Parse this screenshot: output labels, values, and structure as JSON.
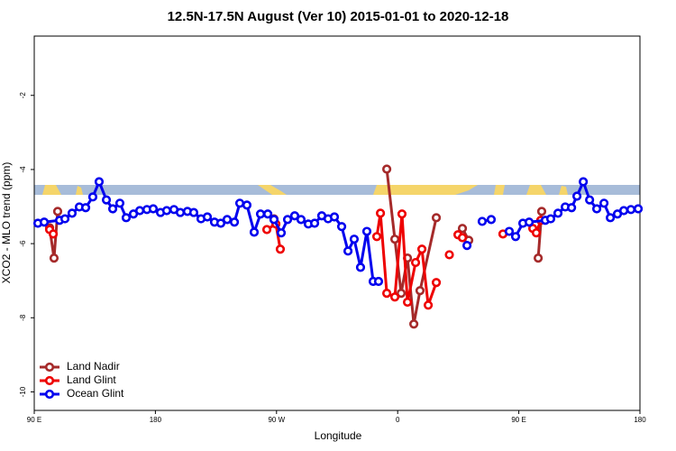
{
  "chart_data": {
    "type": "line",
    "title": "12.5N-17.5N August (Ver 10)   2015-01-01 to 2020-12-18",
    "x_label": "Longitude",
    "y_label": "XCO2 - MLO trend (ppm)",
    "xlim": [
      90,
      540
    ],
    "xticks": [
      {
        "value": 90,
        "label": "90 E"
      },
      {
        "value": 180,
        "label": "180"
      },
      {
        "value": 270,
        "label": "90 W"
      },
      {
        "value": 360,
        "label": "0"
      },
      {
        "value": 450,
        "label": "90 E"
      },
      {
        "value": 540,
        "label": "180"
      }
    ],
    "ylim": [
      -10.5,
      -0.4
    ],
    "yticks": [
      -2,
      -4,
      -6,
      -8,
      -10
    ],
    "legend": "bottom-left",
    "series": [
      {
        "name": "Land Nadir",
        "color": "#a52a2a",
        "x": [
          101.4,
          104.7,
          107.4,
          null,
          268.1,
          null,
          351.9,
          357.9,
          362.6,
          367.3,
          372.0,
          376.6,
          388.7,
          null,
          408.1,
          412.8,
          null,
          464.4,
          467.0
        ],
        "values": [
          -5.57,
          -6.39,
          -5.13,
          null,
          -5.33,
          null,
          -3.99,
          -5.88,
          -7.34,
          -6.39,
          -8.17,
          -7.27,
          -5.3,
          null,
          -5.59,
          -5.91,
          null,
          -6.39,
          -5.13
        ]
      },
      {
        "name": "Land Glint",
        "color": "#ee0000",
        "x": [
          101.4,
          104.1,
          null,
          262.8,
          269.5,
          272.8,
          null,
          344.5,
          347.2,
          351.9,
          357.9,
          363.2,
          367.3,
          373.3,
          378.0,
          382.7,
          388.7,
          null,
          398.4,
          null,
          404.8,
          408.1,
          null,
          438.2,
          null,
          460.4,
          463.0,
          466.3
        ],
        "values": [
          -5.62,
          -5.74,
          null,
          -5.62,
          -5.47,
          -6.15,
          null,
          -5.81,
          -5.18,
          -7.34,
          -7.44,
          -5.2,
          -7.58,
          -6.51,
          -6.15,
          -7.66,
          -7.05,
          null,
          -6.3,
          null,
          -5.76,
          -5.84,
          null,
          -5.74,
          null,
          -5.59,
          -5.71,
          -5.37
        ]
      },
      {
        "name": "Ocean Glint",
        "color": "#0000ee",
        "x": [
          92.7,
          97.4,
          108.8,
          112.8,
          118.1,
          123.5,
          128.2,
          133.5,
          138.2,
          143.6,
          148.3,
          153.6,
          158.3,
          163.7,
          168.4,
          173.7,
          178.4,
          183.8,
          188.4,
          193.8,
          198.5,
          203.8,
          208.5,
          213.9,
          218.6,
          223.9,
          228.6,
          233.3,
          238.7,
          242.7,
          248.0,
          253.4,
          258.1,
          263.5,
          268.1,
          273.5,
          278.2,
          283.5,
          288.2,
          293.6,
          298.3,
          303.6,
          308.3,
          313.0,
          318.4,
          323.1,
          327.7,
          332.4,
          337.1,
          341.8,
          345.8,
          null,
          411.5,
          null,
          422.8,
          429.5,
          null,
          442.9,
          447.6,
          453.0,
          457.7,
          469.7,
          473.7,
          479.1,
          484.5,
          489.2,
          493.2,
          497.9,
          502.6,
          507.9,
          513.3,
          518.0,
          523.3,
          528.0,
          533.3,
          538.7
        ],
        "values": [
          -5.45,
          -5.42,
          -5.37,
          -5.33,
          -5.18,
          -5.01,
          -5.03,
          -4.74,
          -4.33,
          -4.82,
          -5.06,
          -4.91,
          -5.3,
          -5.2,
          -5.11,
          -5.08,
          -5.06,
          -5.16,
          -5.11,
          -5.08,
          -5.16,
          -5.13,
          -5.16,
          -5.33,
          -5.28,
          -5.42,
          -5.45,
          -5.35,
          -5.42,
          -4.91,
          -4.96,
          -5.69,
          -5.2,
          -5.2,
          -5.35,
          -5.71,
          -5.35,
          -5.25,
          -5.35,
          -5.47,
          -5.45,
          -5.25,
          -5.33,
          -5.28,
          -5.54,
          -6.2,
          -5.88,
          -6.64,
          -5.67,
          -7.02,
          -7.02,
          null,
          -6.05,
          null,
          -5.4,
          -5.35,
          null,
          -5.67,
          -5.81,
          -5.45,
          -5.42,
          -5.37,
          -5.33,
          -5.18,
          -5.01,
          -5.03,
          -4.72,
          -4.33,
          -4.82,
          -5.06,
          -4.91,
          -5.3,
          -5.2,
          -5.11,
          -5.08,
          -5.06
        ]
      }
    ]
  }
}
